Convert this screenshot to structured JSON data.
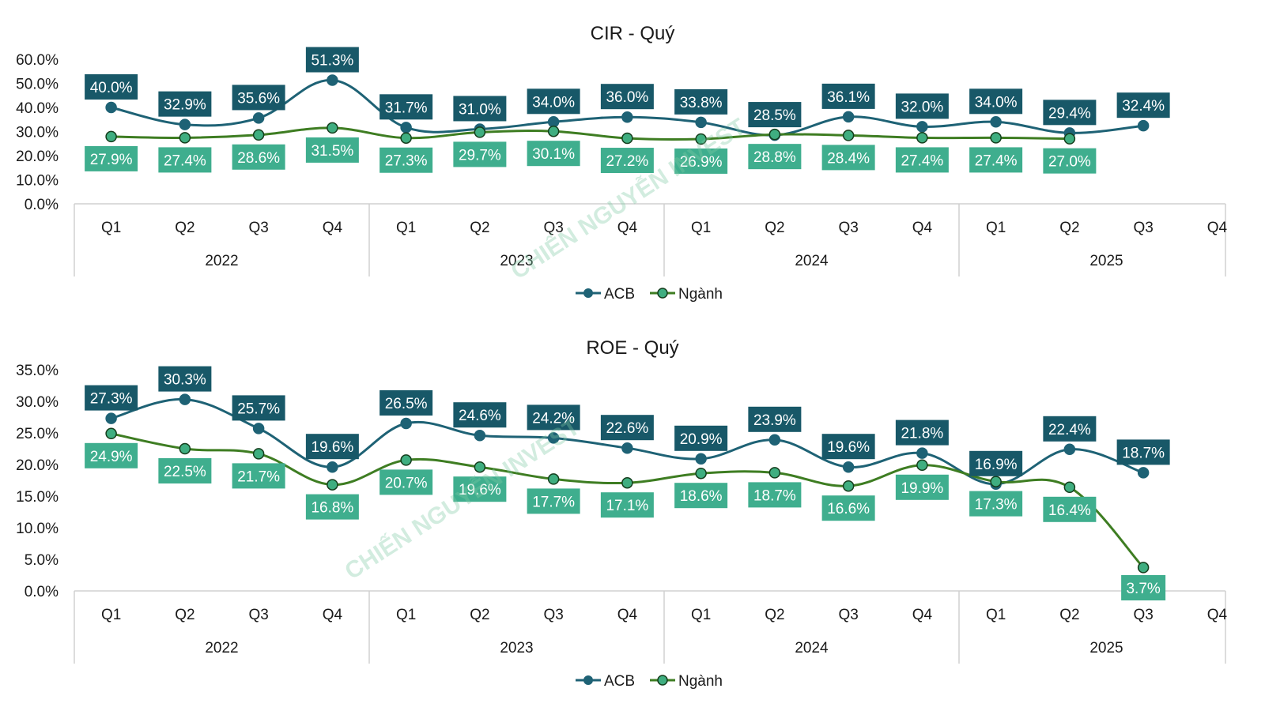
{
  "watermark": "CHIẾN NGUYỄN INVEST",
  "colors": {
    "acb": "#1e6275",
    "acb_label_bg": "#185868",
    "nganh_line": "#3e7d22",
    "nganh_marker": "#3fae80",
    "nganh_label_bg": "#3fae8e",
    "axis": "#d0d0d0"
  },
  "chart_data": [
    {
      "type": "line",
      "title": "CIR - Quý",
      "categories": [
        "Q1",
        "Q2",
        "Q3",
        "Q4",
        "Q1",
        "Q2",
        "Q3",
        "Q4",
        "Q1",
        "Q2",
        "Q3",
        "Q4",
        "Q1",
        "Q2",
        "Q3",
        "Q4"
      ],
      "years": [
        "2022",
        "2023",
        "2024",
        "2025"
      ],
      "ylim": [
        0,
        60
      ],
      "yticks": [
        "0.0%",
        "10.0%",
        "20.0%",
        "30.0%",
        "40.0%",
        "50.0%",
        "60.0%"
      ],
      "series": [
        {
          "name": "ACB",
          "values": [
            40.0,
            32.9,
            35.6,
            51.3,
            31.7,
            31.0,
            34.0,
            36.0,
            33.8,
            28.5,
            36.1,
            32.0,
            34.0,
            29.4,
            32.4,
            null
          ],
          "labels": [
            "40.0%",
            "32.9%",
            "35.6%",
            "51.3%",
            "31.7%",
            "31.0%",
            "34.0%",
            "36.0%",
            "33.8%",
            "28.5%",
            "36.1%",
            "32.0%",
            "34.0%",
            "29.4%",
            "32.4%",
            ""
          ]
        },
        {
          "name": "Ngành",
          "values": [
            27.9,
            27.4,
            28.6,
            31.5,
            27.3,
            29.7,
            30.1,
            27.2,
            26.9,
            28.8,
            28.4,
            27.4,
            27.4,
            27.0,
            null,
            null
          ],
          "labels": [
            "27.9%",
            "27.4%",
            "28.6%",
            "31.5%",
            "27.3%",
            "29.7%",
            "30.1%",
            "27.2%",
            "26.9%",
            "28.8%",
            "28.4%",
            "27.4%",
            "27.4%",
            "27.0%",
            "",
            ""
          ]
        }
      ],
      "legend": "bottom"
    },
    {
      "type": "line",
      "title": "ROE - Quý",
      "categories": [
        "Q1",
        "Q2",
        "Q3",
        "Q4",
        "Q1",
        "Q2",
        "Q3",
        "Q4",
        "Q1",
        "Q2",
        "Q3",
        "Q4",
        "Q1",
        "Q2",
        "Q3",
        "Q4"
      ],
      "years": [
        "2022",
        "2023",
        "2024",
        "2025"
      ],
      "ylim": [
        0,
        35
      ],
      "yticks": [
        "0.0%",
        "5.0%",
        "10.0%",
        "15.0%",
        "20.0%",
        "25.0%",
        "30.0%",
        "35.0%"
      ],
      "series": [
        {
          "name": "ACB",
          "values": [
            27.3,
            30.3,
            25.7,
            19.6,
            26.5,
            24.6,
            24.2,
            22.6,
            20.9,
            23.9,
            19.6,
            21.8,
            16.9,
            22.4,
            18.7,
            null
          ],
          "labels": [
            "27.3%",
            "30.3%",
            "25.7%",
            "19.6%",
            "26.5%",
            "24.6%",
            "24.2%",
            "22.6%",
            "20.9%",
            "23.9%",
            "19.6%",
            "21.8%",
            "16.9%",
            "22.4%",
            "18.7%",
            ""
          ]
        },
        {
          "name": "Ngành",
          "values": [
            24.9,
            22.5,
            21.7,
            16.8,
            20.7,
            19.6,
            17.7,
            17.1,
            18.6,
            18.7,
            16.6,
            19.9,
            17.3,
            16.4,
            3.7,
            null
          ],
          "labels": [
            "24.9%",
            "22.5%",
            "21.7%",
            "16.8%",
            "20.7%",
            "19.6%",
            "17.7%",
            "17.1%",
            "18.6%",
            "18.7%",
            "16.6%",
            "19.9%",
            "17.3%",
            "16.4%",
            "3.7%",
            ""
          ]
        }
      ],
      "legend": "bottom"
    }
  ]
}
